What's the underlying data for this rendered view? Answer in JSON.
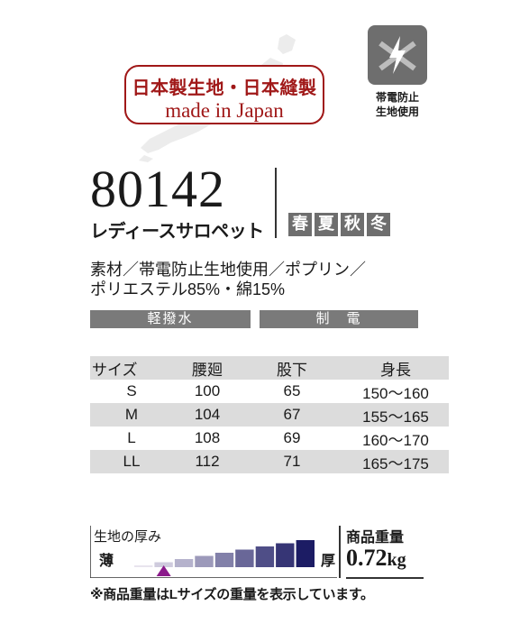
{
  "badge": {
    "line1": "日本製生地・日本縫製",
    "line2": "made in Japan"
  },
  "antistatic": {
    "label_line1": "帯電防止",
    "label_line2": "生地使用",
    "icon": "lightning-crossed-icon"
  },
  "product": {
    "model": "80142",
    "name": "レディースサロペット"
  },
  "seasons": [
    "春",
    "夏",
    "秋",
    "冬"
  ],
  "material": {
    "line1": "素材／帯電防止生地使用／ポプリン／",
    "line2": "ポリエステル85%・綿15%"
  },
  "features": [
    "軽撥水",
    "制　電"
  ],
  "size_table": {
    "headers": [
      "サイズ",
      "腰廻",
      "股下",
      "身長"
    ],
    "rows": [
      [
        "S",
        "100",
        "65",
        "150〜160"
      ],
      [
        "M",
        "104",
        "67",
        "155〜165"
      ],
      [
        "L",
        "108",
        "69",
        "160〜170"
      ],
      [
        "LL",
        "112",
        "71",
        "165〜175"
      ]
    ]
  },
  "thickness": {
    "title": "生地の厚み",
    "thin": "薄",
    "thick": "厚",
    "level": 2,
    "levels": 9
  },
  "weight": {
    "title": "商品重量",
    "value": "0.72",
    "unit": "kg"
  },
  "note": "※商品重量はLサイズの重量を表示しています。",
  "colors": {
    "badge_red": "#a01818",
    "gray": "#6e6e6e",
    "thickness_marker": "#8b1a8b"
  }
}
